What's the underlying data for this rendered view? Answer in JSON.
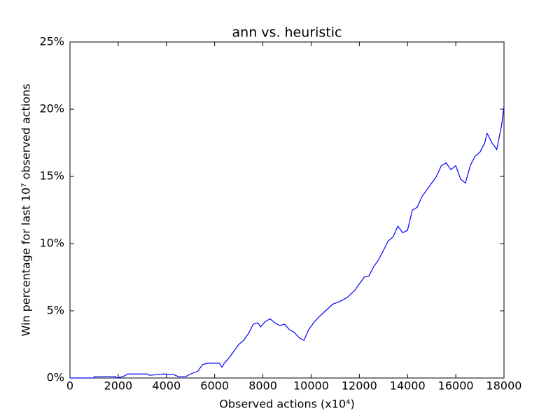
{
  "chart_data": {
    "type": "line",
    "title": "ann vs. heuristic",
    "xlabel": "Observed actions (x10⁴)",
    "ylabel": "Win percentage for last 10⁷ observed actions",
    "xlim": [
      0,
      18000
    ],
    "ylim": [
      0,
      25
    ],
    "xticks": [
      0,
      2000,
      4000,
      6000,
      8000,
      10000,
      12000,
      14000,
      16000,
      18000
    ],
    "yticks": [
      {
        "value": 0,
        "label": "0%"
      },
      {
        "value": 5,
        "label": "5%"
      },
      {
        "value": 10,
        "label": "10%"
      },
      {
        "value": 15,
        "label": "15%"
      },
      {
        "value": 20,
        "label": "20%"
      },
      {
        "value": 25,
        "label": "25%"
      }
    ],
    "series": [
      {
        "color": "#0000ff",
        "x": [
          0,
          1000,
          1000,
          1900,
          1900,
          2200,
          2400,
          3200,
          3300,
          3900,
          4300,
          4500,
          4800,
          5000,
          5300,
          5500,
          5700,
          6000,
          6200,
          6300,
          6400,
          6600,
          6800,
          7000,
          7200,
          7400,
          7600,
          7800,
          7900,
          8100,
          8300,
          8500,
          8700,
          8900,
          9100,
          9300,
          9500,
          9700,
          9900,
          10100,
          10300,
          10600,
          10900,
          11200,
          11500,
          11800,
          12000,
          12200,
          12400,
          12600,
          12800,
          13000,
          13200,
          13400,
          13600,
          13800,
          14000,
          14200,
          14400,
          14600,
          14800,
          15000,
          15200,
          15400,
          15600,
          15800,
          16000,
          16200,
          16400,
          16600,
          16800,
          17000,
          17200,
          17300,
          17500,
          17700,
          17900,
          18000
        ],
        "values": [
          0,
          0,
          0.1,
          0.1,
          0,
          0.1,
          0.3,
          0.3,
          0.2,
          0.3,
          0.25,
          0.1,
          0.1,
          0.3,
          0.5,
          1.0,
          1.1,
          1.1,
          1.1,
          0.8,
          1.1,
          1.5,
          2.0,
          2.5,
          2.8,
          3.3,
          4.0,
          4.1,
          3.8,
          4.2,
          4.4,
          4.1,
          3.9,
          4.0,
          3.6,
          3.4,
          3.0,
          2.8,
          3.6,
          4.1,
          4.5,
          5.0,
          5.5,
          5.7,
          6.0,
          6.5,
          7.0,
          7.5,
          7.6,
          8.3,
          8.8,
          9.5,
          10.2,
          10.5,
          11.3,
          10.8,
          11.0,
          12.5,
          12.7,
          13.5,
          14.0,
          14.5,
          15.0,
          15.8,
          16.0,
          15.5,
          15.8,
          14.8,
          14.5,
          15.8,
          16.5,
          16.8,
          17.5,
          18.2,
          17.5,
          17.0,
          18.8,
          20.2
        ]
      }
    ]
  }
}
